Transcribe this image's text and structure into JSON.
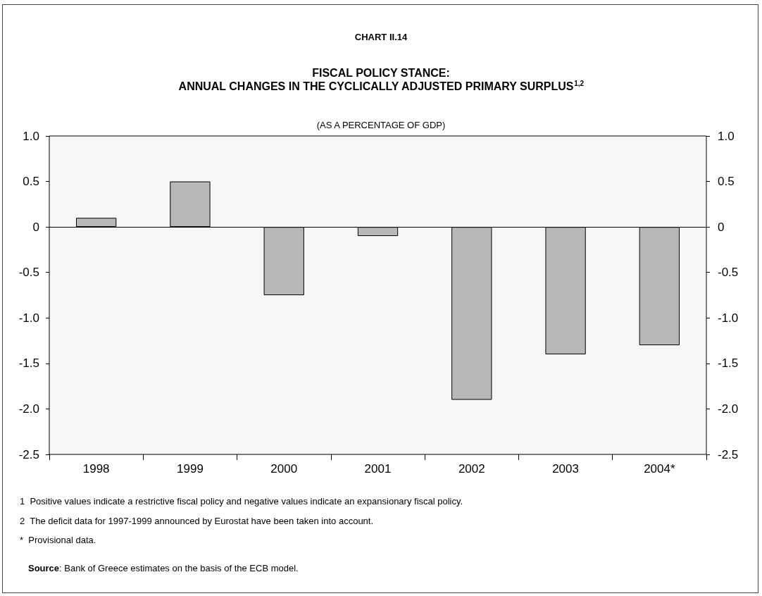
{
  "chart_data": {
    "type": "bar",
    "title": "FISCAL POLICY STANCE:\nANNUAL CHANGES IN THE CYCLICALLY ADJUSTED PRIMARY SURPLUS$^{1,2}$",
    "subtitle": "(AS A PERCENTAGE OF GDP)",
    "categories": [
      "1998",
      "1999",
      "2000",
      "2001",
      "2002",
      "2003",
      "2004*"
    ],
    "values": [
      0.1,
      0.5,
      -0.75,
      -0.1,
      -1.9,
      -1.4,
      -1.3
    ],
    "color": "#b8b8b8",
    "ylim": [
      -2.5,
      1
    ],
    "yticks": [
      {
        "value": 1,
        "label": "1.0"
      },
      0.5,
      0,
      -0.5,
      {
        "value": -1,
        "label": "-1.0"
      },
      -1.5,
      {
        "value": -2,
        "label": "-2.0"
      },
      -2.5
    ],
    "y2lim": [
      -2.5,
      1
    ],
    "y2ticks": [
      {
        "value": 1,
        "label": "1.0"
      },
      0.5,
      0,
      -0.5,
      {
        "value": -1,
        "label": "-1.0"
      },
      -1.5,
      {
        "value": -2,
        "label": "-2.0"
      },
      -2.5
    ],
    "annotations": [
      "CHART II.14",
      "1  Positive values indicate a restrictive fiscal policy and negative values indicate an expansionary fiscal policy.",
      "2  The deficit data for 1997-1999 announced by Eurostat have been taken into account.",
      "*  Provisional data.",
      "Source: Bank of Greece estimates on the basis of the ECB model."
    ]
  }
}
